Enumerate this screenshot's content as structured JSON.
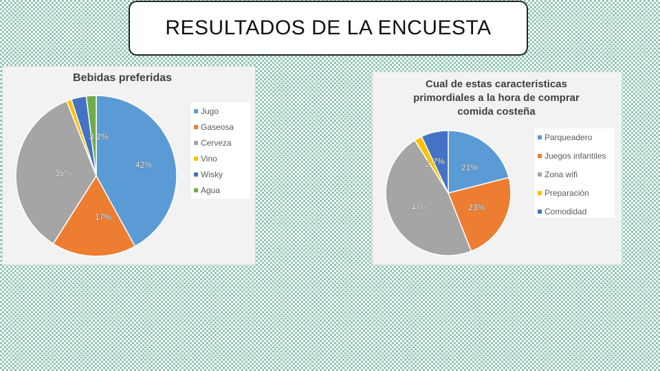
{
  "page_title": "RESULTADOS DE LA ENCUESTA",
  "chart_data": [
    {
      "type": "pie",
      "title": "Bebidas preferidas",
      "categories": [
        "Jugo",
        "Gaseosa",
        "Cerveza",
        "Vino",
        "Wisky",
        "Agua"
      ],
      "values": [
        42,
        17,
        35,
        1,
        3,
        2
      ],
      "data_labels": [
        "42%",
        "17%",
        "35%",
        "",
        "3",
        "2%"
      ],
      "colors": [
        "#5b9bd5",
        "#ed7d31",
        "#a5a5a5",
        "#ffc000",
        "#4472c4",
        "#70ad47"
      ],
      "legend_position": "right"
    },
    {
      "type": "pie",
      "title": "Cual de estas caracteristicas primordiales a la hora de comprar comida costeña",
      "title_lines": [
        "Cual de estas caracteristicas",
        "primordiales a la hora de comprar",
        "comida costeña"
      ],
      "categories": [
        "Parqueadero",
        "Juegos infantiles",
        "Zona wifi",
        "Preparaciòn",
        "Comodidad"
      ],
      "values": [
        21,
        23,
        47,
        2,
        7
      ],
      "data_labels": [
        "21%",
        "23%",
        "47%",
        "2",
        "7%"
      ],
      "colors": [
        "#5b9bd5",
        "#ed7d31",
        "#a5a5a5",
        "#ffc000",
        "#4472c4"
      ],
      "legend_position": "right"
    }
  ]
}
